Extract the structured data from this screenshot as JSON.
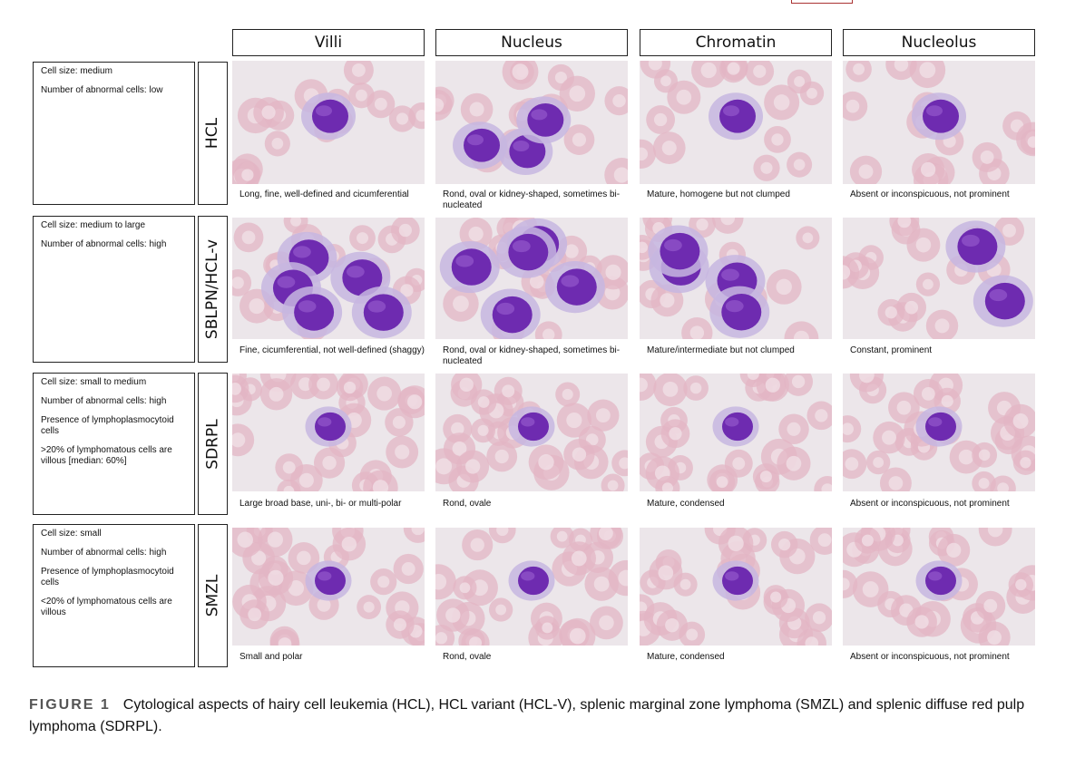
{
  "columns": [
    "Villi",
    "Nucleus",
    "Chromatin",
    "Nucleolus"
  ],
  "rows": [
    {
      "label": "HCL",
      "info": [
        "Cell size: medium",
        "Number of abnormal cells: low"
      ],
      "captions": [
        "Long, fine, well-defined and cicumferential",
        "Rond, oval or kidney-shaped, sometimes bi-nucleated",
        "Mature, homogene but not clumped",
        "Absent or inconspicuous, not prominent"
      ]
    },
    {
      "label": "SBLPN/HCL-v",
      "info": [
        "Cell size: medium to large",
        "Number of abnormal cells: high"
      ],
      "captions": [
        "Fine, cicumferential, not well-defined (shaggy)",
        "Rond, oval or kidney-shaped, sometimes bi-nucleated",
        "Mature/intermediate but not clumped",
        "Constant, prominent"
      ]
    },
    {
      "label": "SDRPL",
      "info": [
        "Cell size: small to medium",
        "Number of abnormal cells: high",
        "Presence of lymphoplasmocytoid cells",
        ">20% of lymphomatous cells are villous [median: 60%]"
      ],
      "captions": [
        "Large broad base, uni-, bi- or multi-polar",
        "Rond, ovale",
        "Mature, condensed",
        "Absent or inconspicuous, not prominent"
      ]
    },
    {
      "label": "SMZL",
      "info": [
        "Cell size: small",
        "Number of abnormal cells: high",
        "Presence of lymphoplasmocytoid cells",
        "<20% of lymphomatous cells are villous"
      ],
      "captions": [
        "Small and polar",
        "Rond, ovale",
        "Mature, condensed",
        "Absent or inconspicuous, not prominent"
      ]
    }
  ],
  "figure": {
    "label": "FIGURE 1",
    "text": "Cytological aspects of hairy cell leukemia (HCL), HCL variant (HCL-V), splenic marginal zone lymphoma (SMZL) and splenic diffuse red pulp lymphoma (SDRPL)."
  },
  "colors": {
    "rbc": "#e3b5c4",
    "nucleus": "#6e2bb0",
    "cytoplasm": "#c7b6e0",
    "background": "#ece6ea"
  }
}
